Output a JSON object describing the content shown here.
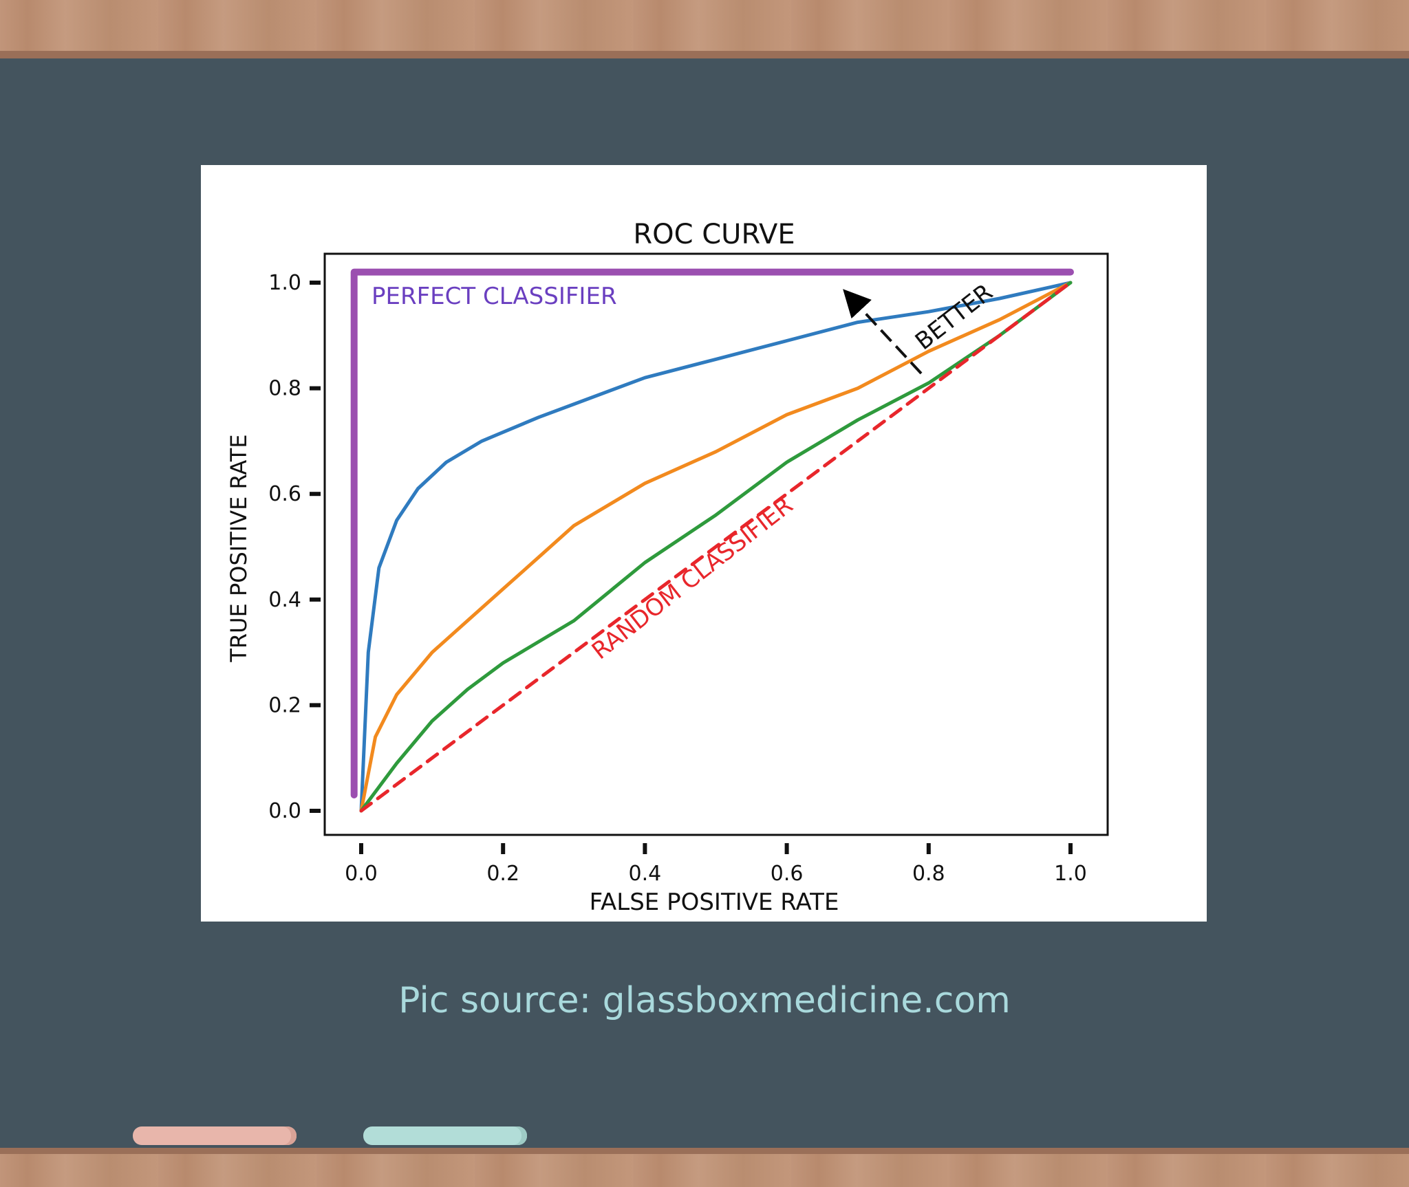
{
  "caption": "Pic source: glassboxmedicine.com",
  "colors": {
    "board": "#44545e",
    "wood": "#c1957a",
    "caption": "#a9d9dc",
    "chalk_pink": "#e8b6ab",
    "chalk_teal": "#b2ddd8"
  },
  "chart_data": {
    "type": "line",
    "title": "ROC CURVE",
    "xlabel": "FALSE POSITIVE RATE",
    "ylabel": "TRUE POSITIVE RATE",
    "xlim": [
      0,
      1
    ],
    "ylim": [
      0,
      1
    ],
    "xticks": [
      "0.0",
      "0.2",
      "0.4",
      "0.6",
      "0.8",
      "1.0"
    ],
    "yticks": [
      "0.0",
      "0.2",
      "0.4",
      "0.6",
      "0.8",
      "1.0"
    ],
    "grid": false,
    "series": [
      {
        "name": "",
        "color": "#2f7bbf",
        "style": "solid",
        "points": [
          [
            0,
            0
          ],
          [
            0.01,
            0.3
          ],
          [
            0.025,
            0.46
          ],
          [
            0.05,
            0.55
          ],
          [
            0.08,
            0.61
          ],
          [
            0.12,
            0.66
          ],
          [
            0.17,
            0.7
          ],
          [
            0.25,
            0.745
          ],
          [
            0.3,
            0.77
          ],
          [
            0.4,
            0.82
          ],
          [
            0.5,
            0.855
          ],
          [
            0.6,
            0.89
          ],
          [
            0.7,
            0.925
          ],
          [
            0.8,
            0.945
          ],
          [
            0.9,
            0.97
          ],
          [
            1,
            1
          ]
        ]
      },
      {
        "name": "",
        "color": "#f28a1e",
        "style": "solid",
        "points": [
          [
            0,
            0
          ],
          [
            0.02,
            0.14
          ],
          [
            0.05,
            0.22
          ],
          [
            0.1,
            0.3
          ],
          [
            0.15,
            0.36
          ],
          [
            0.2,
            0.42
          ],
          [
            0.25,
            0.48
          ],
          [
            0.3,
            0.54
          ],
          [
            0.4,
            0.62
          ],
          [
            0.5,
            0.68
          ],
          [
            0.6,
            0.75
          ],
          [
            0.7,
            0.8
          ],
          [
            0.8,
            0.87
          ],
          [
            0.9,
            0.93
          ],
          [
            1,
            1
          ]
        ]
      },
      {
        "name": "",
        "color": "#2e9a3c",
        "style": "solid",
        "points": [
          [
            0,
            0
          ],
          [
            0.05,
            0.09
          ],
          [
            0.1,
            0.17
          ],
          [
            0.15,
            0.23
          ],
          [
            0.2,
            0.28
          ],
          [
            0.3,
            0.36
          ],
          [
            0.4,
            0.47
          ],
          [
            0.5,
            0.56
          ],
          [
            0.6,
            0.66
          ],
          [
            0.7,
            0.74
          ],
          [
            0.8,
            0.81
          ],
          [
            0.9,
            0.9
          ],
          [
            1,
            1
          ]
        ]
      },
      {
        "name": "RANDOM CLASSIFIER",
        "color": "#e8262b",
        "style": "dashed",
        "points": [
          [
            0,
            0
          ],
          [
            1,
            1
          ]
        ]
      },
      {
        "name": "PERFECT CLASSIFIER",
        "color": "#9b4fb0",
        "style": "solid",
        "points": [
          [
            -0.01,
            0.03
          ],
          [
            -0.01,
            1.02
          ],
          [
            1,
            1.02
          ]
        ]
      }
    ],
    "annotations": [
      {
        "text": "PERFECT CLASSIFIER",
        "color": "#6a3fc0"
      },
      {
        "text": "RANDOM CLASSIFIER",
        "color": "#e8262b"
      },
      {
        "text": "BETTER",
        "color": "#111111"
      }
    ]
  }
}
